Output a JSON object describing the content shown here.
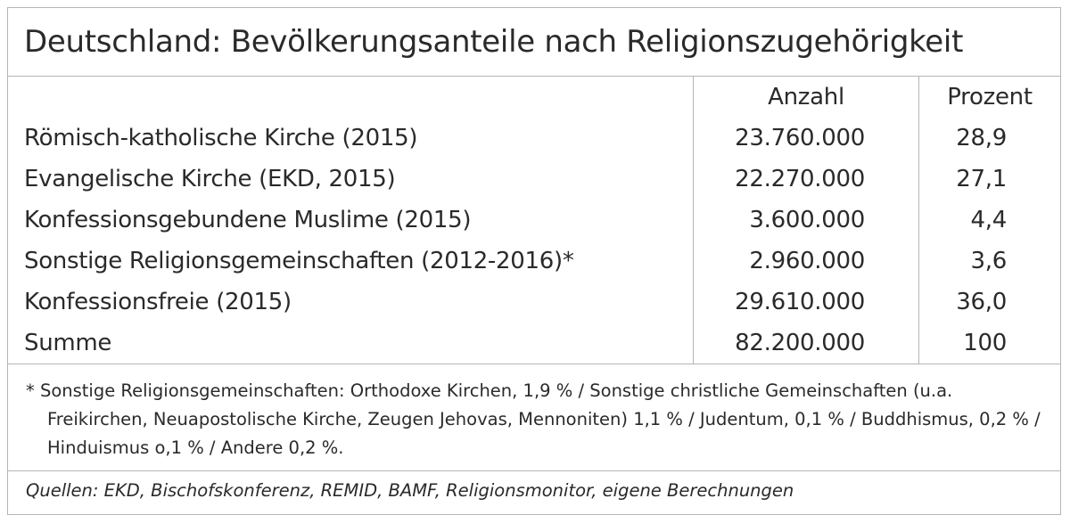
{
  "title": "Deutschland: Bevölkerungsanteile nach Religionszugehörigkeit",
  "table": {
    "header": {
      "count": "Anzahl",
      "percent": "Prozent"
    },
    "rows": [
      [
        "Römisch-katholische Kirche (2015)",
        "23.760.000",
        "28,9"
      ],
      [
        "Evangelische Kirche (EKD, 2015)",
        "22.270.000",
        "27,1"
      ],
      [
        "Konfessionsgebundene Muslime (2015)",
        "3.600.000",
        "4,4"
      ],
      [
        "Sonstige Religionsgemeinschaften (2012-2016)*",
        "2.960.000",
        "3,6"
      ],
      [
        "Konfessionsfreie (2015)",
        "29.610.000",
        "36,0"
      ],
      [
        "Summe",
        "82.200.000",
        "100"
      ]
    ]
  },
  "footnote": "* Sonstige Religionsgemeinschaften: Orthodoxe Kirchen, 1,9 % / Sonstige christliche Gemeinschaften (u.a. Freikirchen, Neuapostolische Kirche, Zeugen Jehovas, Mennoniten) 1,1 % / Judentum, 0,1 % / Buddhismus, 0,2 % / Hinduismus o,1 % / Andere 0,2 %.",
  "source": "Quellen: EKD, Bischofskonferenz, REMID, BAMF, Religionsmonitor, eigene Berechnungen"
}
